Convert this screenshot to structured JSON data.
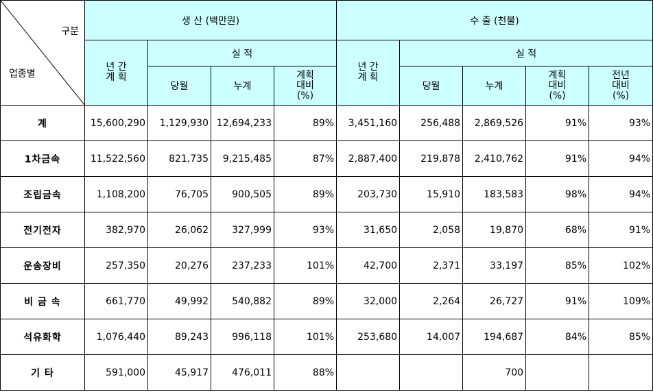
{
  "header": {
    "corner_top": "구분",
    "corner_bottom": "업종별",
    "production_title": "생 산 (백만원)",
    "export_title": "수 출 (천불)",
    "annual_plan": "년 간\n계 획",
    "actual": "실 적",
    "this_month": "당월",
    "cumulative": "누계",
    "vs_plan": "계획\n대비\n(%)",
    "vs_last_year": "전년\n대비\n(%)"
  },
  "rows": [
    {
      "label": "계",
      "cells": [
        "15,600,290",
        "1,129,930",
        "12,694,233",
        "89%",
        "3,451,160",
        "256,488",
        "2,869,526",
        "91%",
        "93%"
      ]
    },
    {
      "label": "1차금속",
      "cells": [
        "11,522,560",
        "821,735",
        "9,215,485",
        "87%",
        "2,887,400",
        "219,878",
        "2,410,762",
        "91%",
        "94%"
      ]
    },
    {
      "label": "조립금속",
      "cells": [
        "1,108,200",
        "76,705",
        "900,505",
        "89%",
        "203,730",
        "15,910",
        "183,583",
        "98%",
        "94%"
      ]
    },
    {
      "label": "전기전자",
      "cells": [
        "382,970",
        "26,062",
        "327,999",
        "93%",
        "31,650",
        "2,058",
        "19,870",
        "68%",
        "91%"
      ]
    },
    {
      "label": "운송장비",
      "cells": [
        "257,350",
        "20,276",
        "237,233",
        "101%",
        "42,700",
        "2,371",
        "33,197",
        "85%",
        "102%"
      ]
    },
    {
      "label": "비 금 속",
      "cells": [
        "661,770",
        "49,992",
        "540,882",
        "89%",
        "32,000",
        "2,264",
        "26,727",
        "91%",
        "109%"
      ]
    },
    {
      "label": "석유화학",
      "cells": [
        "1,076,440",
        "89,243",
        "996,118",
        "101%",
        "253,680",
        "14,007",
        "194,687",
        "84%",
        "85%"
      ]
    },
    {
      "label": "기 타",
      "cells": [
        "591,000",
        "45,917",
        "476,011",
        "88%",
        "",
        "",
        "700",
        "",
        ""
      ]
    }
  ]
}
